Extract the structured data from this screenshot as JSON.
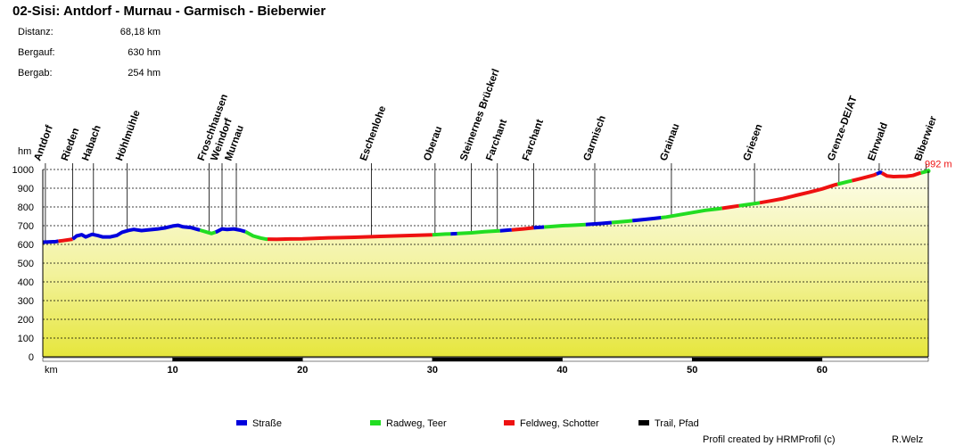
{
  "header": {
    "title": "02-Sisi: Antdorf - Murnau - Garmisch - Bieberwier"
  },
  "stats": [
    {
      "label": "Distanz:",
      "value": "68,18 km"
    },
    {
      "label": "Bergauf:",
      "value": "630 hm"
    },
    {
      "label": "Bergab:",
      "value": "254 hm"
    }
  ],
  "legend": [
    {
      "label": "Straße",
      "color": "#0000dd"
    },
    {
      "label": "Radweg, Teer",
      "color": "#22dd22"
    },
    {
      "label": "Feldweg, Schotter",
      "color": "#ee1111"
    },
    {
      "label": "Trail, Pfad",
      "color": "#000000"
    }
  ],
  "footer": {
    "credit": "Profil created by HRMProfil (c)",
    "author": "R.Welz"
  },
  "chart_data": {
    "type": "area",
    "ylabel": "hm",
    "xlabel": "km",
    "xlim": [
      0,
      68.18
    ],
    "ylim": [
      0,
      1000
    ],
    "yticks": [
      0,
      100,
      200,
      300,
      400,
      500,
      600,
      700,
      800,
      900,
      1000
    ],
    "xticks": [
      10,
      20,
      30,
      40,
      50,
      60
    ],
    "grid": true,
    "end_label": "992 m",
    "waypoints": [
      {
        "name": "Antdorf",
        "km": 0.2
      },
      {
        "name": "Rieden",
        "km": 2.3
      },
      {
        "name": "Habach",
        "km": 3.9
      },
      {
        "name": "Höhlmühle",
        "km": 6.5
      },
      {
        "name": "Froschhausen",
        "km": 12.8
      },
      {
        "name": "Weindorf",
        "km": 13.8
      },
      {
        "name": "Murnau",
        "km": 14.9
      },
      {
        "name": "Eschenlohe",
        "km": 25.3
      },
      {
        "name": "Oberau",
        "km": 30.2
      },
      {
        "name": "Steinernes Brückerl",
        "km": 33.0
      },
      {
        "name": "Farchant",
        "km": 35.0
      },
      {
        "name": "Farchant",
        "km": 37.8
      },
      {
        "name": "Garmisch",
        "km": 42.5
      },
      {
        "name": "Grainau",
        "km": 48.4
      },
      {
        "name": "Griesen",
        "km": 54.8
      },
      {
        "name": "Grenze-DE/AT",
        "km": 61.3
      },
      {
        "name": "Ehrwald",
        "km": 64.4
      },
      {
        "name": "Biberwier",
        "km": 68.0
      }
    ],
    "profile": [
      [
        0,
        612
      ],
      [
        1,
        615
      ],
      [
        1.5,
        620
      ],
      [
        2.3,
        628
      ],
      [
        2.6,
        645
      ],
      [
        3.0,
        652
      ],
      [
        3.3,
        640
      ],
      [
        3.8,
        654
      ],
      [
        4.2,
        648
      ],
      [
        4.6,
        640
      ],
      [
        5.2,
        640
      ],
      [
        5.7,
        648
      ],
      [
        6.1,
        665
      ],
      [
        6.6,
        675
      ],
      [
        7.0,
        680
      ],
      [
        7.6,
        674
      ],
      [
        8.2,
        678
      ],
      [
        8.8,
        682
      ],
      [
        9.4,
        688
      ],
      [
        10.0,
        698
      ],
      [
        10.4,
        702
      ],
      [
        10.8,
        694
      ],
      [
        11.4,
        690
      ],
      [
        12.0,
        678
      ],
      [
        12.5,
        668
      ],
      [
        13.0,
        658
      ],
      [
        13.4,
        668
      ],
      [
        13.8,
        683
      ],
      [
        14.2,
        680
      ],
      [
        14.7,
        683
      ],
      [
        15.2,
        676
      ],
      [
        15.6,
        668
      ],
      [
        16.2,
        645
      ],
      [
        16.8,
        634
      ],
      [
        17.2,
        628
      ],
      [
        18.0,
        627
      ],
      [
        19.0,
        629
      ],
      [
        20.0,
        630
      ],
      [
        22.0,
        635
      ],
      [
        24.0,
        638
      ],
      [
        26.0,
        643
      ],
      [
        28.0,
        647
      ],
      [
        30.0,
        651
      ],
      [
        31.0,
        655
      ],
      [
        32.0,
        658
      ],
      [
        33.0,
        662
      ],
      [
        34.0,
        668
      ],
      [
        35.0,
        672
      ],
      [
        36.0,
        677
      ],
      [
        37.0,
        683
      ],
      [
        38.0,
        690
      ],
      [
        39.0,
        695
      ],
      [
        40.0,
        700
      ],
      [
        41.0,
        703
      ],
      [
        42.0,
        707
      ],
      [
        43.0,
        712
      ],
      [
        44.0,
        718
      ],
      [
        45.0,
        724
      ],
      [
        46.0,
        731
      ],
      [
        47.0,
        738
      ],
      [
        48.0,
        746
      ],
      [
        49.0,
        758
      ],
      [
        50.0,
        770
      ],
      [
        51.0,
        782
      ],
      [
        52.0,
        790
      ],
      [
        53.0,
        800
      ],
      [
        54.0,
        810
      ],
      [
        55.0,
        820
      ],
      [
        56.0,
        832
      ],
      [
        57.0,
        845
      ],
      [
        58.0,
        862
      ],
      [
        59.0,
        878
      ],
      [
        60.0,
        896
      ],
      [
        61.0,
        918
      ],
      [
        62.0,
        935
      ],
      [
        63.0,
        952
      ],
      [
        64.0,
        970
      ],
      [
        64.5,
        985
      ],
      [
        65.0,
        965
      ],
      [
        65.5,
        962
      ],
      [
        66.0,
        963
      ],
      [
        66.5,
        964
      ],
      [
        67.0,
        968
      ],
      [
        67.5,
        980
      ],
      [
        68.18,
        992
      ]
    ],
    "segments": [
      {
        "type": "Straße",
        "from": 0.0,
        "to": 1.2
      },
      {
        "type": "Feldweg, Schotter",
        "from": 1.2,
        "to": 2.3
      },
      {
        "type": "Straße",
        "from": 2.3,
        "to": 12.1
      },
      {
        "type": "Radweg, Teer",
        "from": 12.1,
        "to": 13.3
      },
      {
        "type": "Straße",
        "from": 13.3,
        "to": 15.6
      },
      {
        "type": "Radweg, Teer",
        "from": 15.6,
        "to": 17.3
      },
      {
        "type": "Feldweg, Schotter",
        "from": 17.3,
        "to": 30.0
      },
      {
        "type": "Radweg, Teer",
        "from": 30.0,
        "to": 31.4
      },
      {
        "type": "Straße",
        "from": 31.4,
        "to": 31.9
      },
      {
        "type": "Radweg, Teer",
        "from": 31.9,
        "to": 35.2
      },
      {
        "type": "Straße",
        "from": 35.2,
        "to": 36.1
      },
      {
        "type": "Feldweg, Schotter",
        "from": 36.1,
        "to": 37.8
      },
      {
        "type": "Straße",
        "from": 37.8,
        "to": 38.6
      },
      {
        "type": "Radweg, Teer",
        "from": 38.6,
        "to": 41.8
      },
      {
        "type": "Straße",
        "from": 41.8,
        "to": 43.8
      },
      {
        "type": "Radweg, Teer",
        "from": 43.8,
        "to": 45.4
      },
      {
        "type": "Straße",
        "from": 45.4,
        "to": 47.6
      },
      {
        "type": "Radweg, Teer",
        "from": 47.6,
        "to": 52.3
      },
      {
        "type": "Feldweg, Schotter",
        "from": 52.3,
        "to": 53.6
      },
      {
        "type": "Radweg, Teer",
        "from": 53.6,
        "to": 55.2
      },
      {
        "type": "Feldweg, Schotter",
        "from": 55.2,
        "to": 61.2
      },
      {
        "type": "Radweg, Teer",
        "from": 61.2,
        "to": 62.3
      },
      {
        "type": "Feldweg, Schotter",
        "from": 62.3,
        "to": 64.2
      },
      {
        "type": "Straße",
        "from": 64.2,
        "to": 64.6
      },
      {
        "type": "Feldweg, Schotter",
        "from": 64.6,
        "to": 67.6
      },
      {
        "type": "Radweg, Teer",
        "from": 67.6,
        "to": 68.18
      }
    ]
  }
}
